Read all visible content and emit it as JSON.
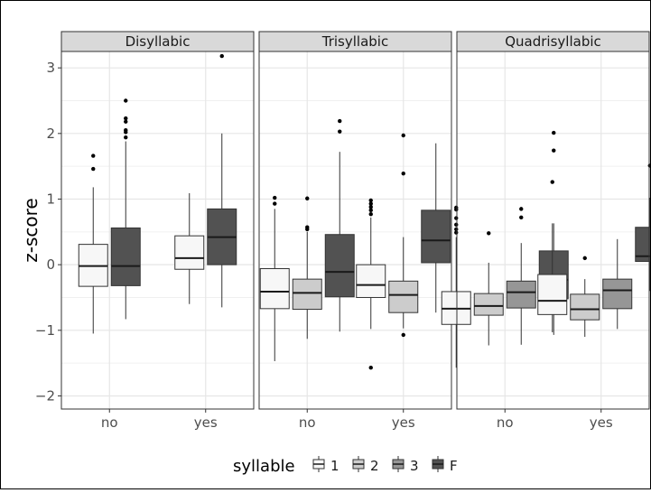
{
  "chart_data": {
    "type": "boxplot",
    "facets": [
      "Disyllabic",
      "Trisyllabic",
      "Quadrisyllabic"
    ],
    "x_categories": [
      "no",
      "yes"
    ],
    "xlabel": "",
    "ylabel": "z-score",
    "ylim": [
      -2.2,
      3.25
    ],
    "yticks": [
      -2,
      -1,
      0,
      1,
      2,
      3
    ],
    "legend": {
      "title": "syllable",
      "position": "bottom",
      "items": [
        {
          "label": "1",
          "color": "#f7f7f7"
        },
        {
          "label": "2",
          "color": "#cccccc"
        },
        {
          "label": "3",
          "color": "#969696"
        },
        {
          "label": "F",
          "color": "#525252"
        }
      ]
    },
    "grid": true,
    "panels": [
      {
        "facet": "Disyllabic",
        "groups": [
          {
            "x": "no",
            "boxes": [
              {
                "syllable": "1",
                "lower_whisker": -1.05,
                "q1": -0.33,
                "median": -0.02,
                "q3": 0.31,
                "upper_whisker": 1.18,
                "outliers": [
                  1.46,
                  1.66
                ]
              },
              {
                "syllable": "F",
                "lower_whisker": -0.83,
                "q1": -0.32,
                "median": -0.02,
                "q3": 0.56,
                "upper_whisker": 1.88,
                "outliers": [
                  1.94,
                  2.02,
                  2.05,
                  2.18,
                  2.23,
                  2.5
                ]
              }
            ]
          },
          {
            "x": "yes",
            "boxes": [
              {
                "syllable": "1",
                "lower_whisker": -0.6,
                "q1": -0.07,
                "median": 0.1,
                "q3": 0.44,
                "upper_whisker": 1.09,
                "outliers": []
              },
              {
                "syllable": "F",
                "lower_whisker": -0.65,
                "q1": 0.0,
                "median": 0.42,
                "q3": 0.85,
                "upper_whisker": 2.0,
                "outliers": [
                  3.18
                ]
              }
            ]
          }
        ]
      },
      {
        "facet": "Trisyllabic",
        "groups": [
          {
            "x": "no",
            "boxes": [
              {
                "syllable": "1",
                "lower_whisker": -1.47,
                "q1": -0.67,
                "median": -0.41,
                "q3": -0.06,
                "upper_whisker": 0.85,
                "outliers": [
                  0.93,
                  1.02
                ]
              },
              {
                "syllable": "2",
                "lower_whisker": -1.13,
                "q1": -0.68,
                "median": -0.43,
                "q3": -0.22,
                "upper_whisker": 0.5,
                "outliers": [
                  0.54,
                  0.57,
                  1.01
                ]
              },
              {
                "syllable": "F",
                "lower_whisker": -1.02,
                "q1": -0.49,
                "median": -0.11,
                "q3": 0.46,
                "upper_whisker": 1.72,
                "outliers": [
                  2.03,
                  2.19
                ]
              }
            ]
          },
          {
            "x": "yes",
            "boxes": [
              {
                "syllable": "1",
                "lower_whisker": -0.98,
                "q1": -0.5,
                "median": -0.31,
                "q3": 0.0,
                "upper_whisker": 0.72,
                "outliers": [
                  0.77,
                  0.83,
                  0.88,
                  0.93,
                  0.98,
                  -1.57
                ]
              },
              {
                "syllable": "2",
                "lower_whisker": -0.97,
                "q1": -0.73,
                "median": -0.46,
                "q3": -0.25,
                "upper_whisker": 0.42,
                "outliers": [
                  -1.07,
                  1.39,
                  1.97
                ]
              },
              {
                "syllable": "F",
                "lower_whisker": -0.73,
                "q1": 0.03,
                "median": 0.37,
                "q3": 0.83,
                "upper_whisker": 1.85,
                "outliers": []
              }
            ]
          }
        ]
      },
      {
        "facet": "Quadrisyllabic",
        "groups": [
          {
            "x": "no",
            "boxes": [
              {
                "syllable": "1",
                "lower_whisker": -1.57,
                "q1": -0.91,
                "median": -0.67,
                "q3": -0.41,
                "upper_whisker": 0.42,
                "outliers": [
                  0.49,
                  0.54,
                  0.61,
                  0.71,
                  0.84,
                  0.87
                ]
              },
              {
                "syllable": "2",
                "lower_whisker": -1.23,
                "q1": -0.77,
                "median": -0.63,
                "q3": -0.44,
                "upper_whisker": 0.03,
                "outliers": [
                  0.48
                ]
              },
              {
                "syllable": "3",
                "lower_whisker": -1.22,
                "q1": -0.66,
                "median": -0.42,
                "q3": -0.25,
                "upper_whisker": 0.33,
                "outliers": [
                  0.72,
                  0.85
                ]
              },
              {
                "syllable": "F",
                "lower_whisker": -1.07,
                "q1": -0.52,
                "median": -0.23,
                "q3": 0.21,
                "upper_whisker": 0.63,
                "outliers": [
                  1.74,
                  2.01
                ]
              }
            ]
          },
          {
            "x": "yes",
            "boxes": [
              {
                "syllable": "1",
                "lower_whisker": -1.03,
                "q1": -0.76,
                "median": -0.55,
                "q3": -0.15,
                "upper_whisker": 0.63,
                "outliers": [
                  1.26
                ]
              },
              {
                "syllable": "2",
                "lower_whisker": -1.1,
                "q1": -0.84,
                "median": -0.68,
                "q3": -0.45,
                "upper_whisker": -0.22,
                "outliers": [
                  0.1
                ]
              },
              {
                "syllable": "3",
                "lower_whisker": -0.98,
                "q1": -0.67,
                "median": -0.39,
                "q3": -0.22,
                "upper_whisker": 0.39,
                "outliers": []
              },
              {
                "syllable": "F",
                "lower_whisker": -0.4,
                "q1": 0.05,
                "median": 0.13,
                "q3": 0.57,
                "upper_whisker": 1.02,
                "outliers": [
                  1.51
                ]
              }
            ]
          }
        ]
      }
    ]
  }
}
